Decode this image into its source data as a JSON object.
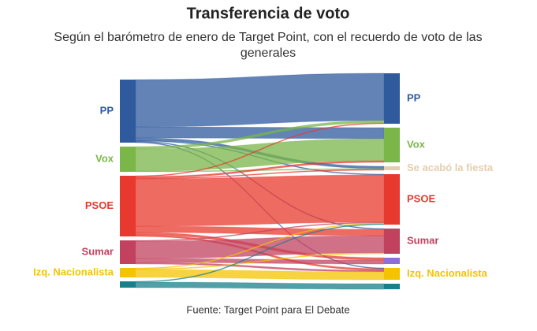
{
  "chart_data": {
    "type": "sankey",
    "title": "Transferencia de voto",
    "subtitle": "Según el barómetro de enero de Target Point, con el recuerdo de voto de las generales",
    "source_note": "Fuente: Target Point para El Debate",
    "targets": [
      {
        "name": "PP",
        "color": "#2f5a9e"
      },
      {
        "name": "Vox",
        "color": "#7ab648"
      },
      {
        "name": "Se acabó la fiesta",
        "color": "#e3cfae"
      },
      {
        "name": "PSOE",
        "color": "#e8392e"
      },
      {
        "name": "Sumar",
        "color": "#c2415f"
      },
      {
        "name": null,
        "color": "#8e6fd8"
      },
      {
        "name": "Izq. Nacionalista",
        "color": "#f5c400"
      },
      {
        "name": null,
        "color": "#17808a"
      }
    ],
    "sources": [
      {
        "name": "PP",
        "color": "#2f5a9e",
        "values": [
          60,
          14,
          3,
          1,
          1,
          0,
          1,
          0
        ]
      },
      {
        "name": "Vox",
        "color": "#7ab648",
        "values": [
          3,
          28,
          1,
          0,
          0,
          0,
          0,
          0
        ]
      },
      {
        "name": "PSOE",
        "color": "#e8392e",
        "values": [
          1,
          2,
          1,
          60,
          8,
          3,
          2,
          0
        ]
      },
      {
        "name": "Sumar",
        "color": "#c2415f",
        "values": [
          0,
          0,
          0,
          1,
          22,
          5,
          2,
          0
        ]
      },
      {
        "name": "Izq. Nacionalista",
        "color": "#f5c400",
        "values": [
          0,
          0,
          0,
          1,
          1,
          0,
          10,
          0
        ]
      },
      {
        "name": null,
        "color": "#17808a",
        "values": [
          0,
          0,
          0,
          1,
          0,
          0,
          0,
          7
        ]
      }
    ]
  }
}
